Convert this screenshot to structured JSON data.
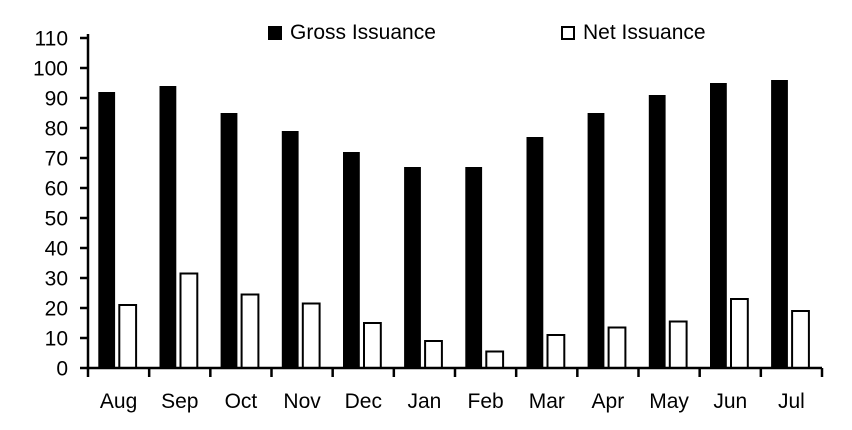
{
  "chart_data": {
    "type": "bar",
    "title": "",
    "xlabel": "",
    "ylabel": "",
    "categories": [
      "Aug",
      "Sep",
      "Oct",
      "Nov",
      "Dec",
      "Jan",
      "Feb",
      "Mar",
      "Apr",
      "May",
      "Jun",
      "Jul"
    ],
    "series": [
      {
        "name": "Gross Issuance",
        "fill": "#000000",
        "stroke": "#000000",
        "values": [
          92,
          94,
          85,
          79,
          72,
          67,
          67,
          77,
          85,
          91,
          95,
          96
        ]
      },
      {
        "name": "Net Issuance",
        "fill": "#FFFFFF",
        "stroke": "#000000",
        "values": [
          21,
          31.5,
          24.5,
          21.5,
          15,
          9,
          5.5,
          11,
          13.5,
          15.5,
          23,
          19
        ]
      }
    ],
    "ylim": [
      0,
      110
    ],
    "yticks": [
      0,
      10,
      20,
      30,
      40,
      50,
      60,
      70,
      80,
      90,
      100,
      110
    ],
    "grid": false,
    "legend_position": "top",
    "background_color": "#FFFFFF",
    "axis_color": "#000000"
  }
}
